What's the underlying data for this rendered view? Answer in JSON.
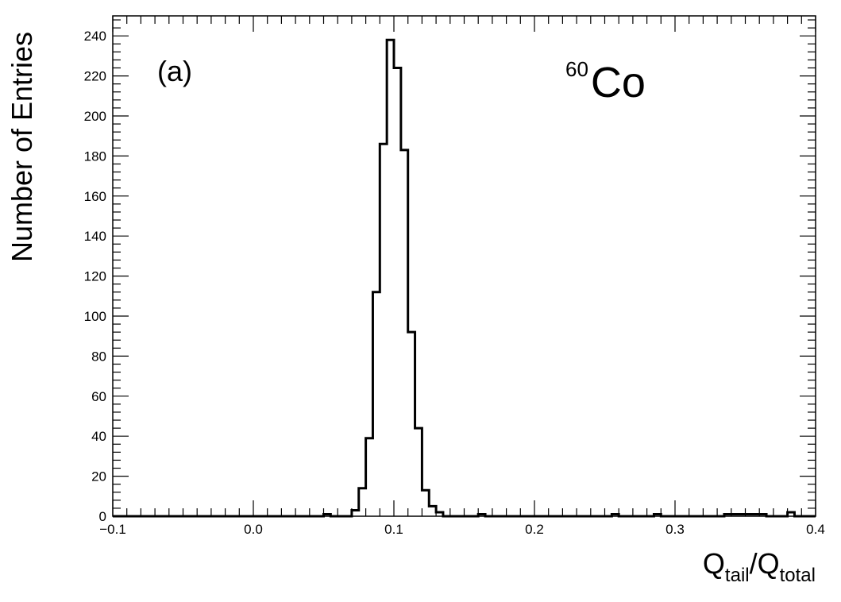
{
  "chart_data": {
    "type": "bar",
    "style": "step-histogram",
    "xlabel": {
      "main": "Q",
      "sub1": "tail",
      "sep": "/Q",
      "sub2": "total"
    },
    "ylabel": "Number of Entries",
    "xlim": [
      -0.1,
      0.4
    ],
    "ylim": [
      0,
      250
    ],
    "x_ticks": [
      -0.1,
      0.0,
      0.1,
      0.2,
      0.3,
      0.4
    ],
    "x_tick_labels": [
      "−0.1",
      "0.0",
      "0.1",
      "0.2",
      "0.3",
      "0.4"
    ],
    "y_ticks": [
      0,
      20,
      40,
      60,
      80,
      100,
      120,
      140,
      160,
      180,
      200,
      220,
      240
    ],
    "y_tick_labels": [
      "0",
      "20",
      "40",
      "60",
      "80",
      "100",
      "120",
      "140",
      "160",
      "180",
      "200",
      "220",
      "240"
    ],
    "bin_width": 0.005,
    "bins": [
      {
        "x": 0.05,
        "count": 1
      },
      {
        "x": 0.07,
        "count": 3
      },
      {
        "x": 0.075,
        "count": 14
      },
      {
        "x": 0.08,
        "count": 39
      },
      {
        "x": 0.085,
        "count": 112
      },
      {
        "x": 0.09,
        "count": 186
      },
      {
        "x": 0.095,
        "count": 238
      },
      {
        "x": 0.1,
        "count": 224
      },
      {
        "x": 0.105,
        "count": 183
      },
      {
        "x": 0.11,
        "count": 92
      },
      {
        "x": 0.115,
        "count": 44
      },
      {
        "x": 0.12,
        "count": 13
      },
      {
        "x": 0.125,
        "count": 5
      },
      {
        "x": 0.13,
        "count": 2
      },
      {
        "x": 0.16,
        "count": 1
      },
      {
        "x": 0.255,
        "count": 1
      },
      {
        "x": 0.285,
        "count": 1
      },
      {
        "x": 0.335,
        "count": 1
      },
      {
        "x": 0.34,
        "count": 1
      },
      {
        "x": 0.345,
        "count": 1
      },
      {
        "x": 0.35,
        "count": 1
      },
      {
        "x": 0.355,
        "count": 1
      },
      {
        "x": 0.36,
        "count": 1
      },
      {
        "x": 0.38,
        "count": 2
      }
    ],
    "annotations": {
      "panel_label": "(a)",
      "isotope_mass": "60",
      "isotope_symbol": "Co"
    },
    "grid": false,
    "line_color": "#000000"
  }
}
